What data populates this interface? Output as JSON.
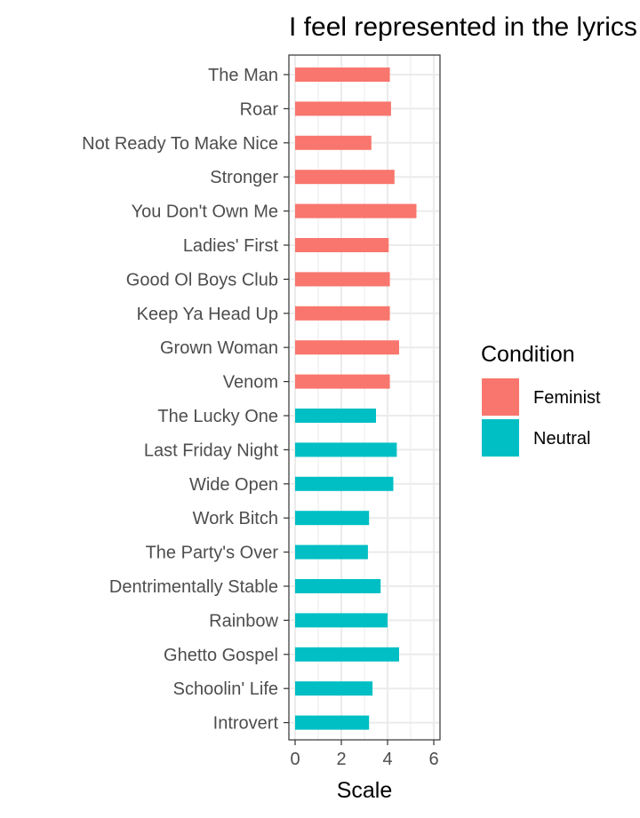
{
  "chart_data": {
    "type": "bar",
    "orientation": "horizontal",
    "title": "I feel represented in the lyrics",
    "xlabel": "Scale",
    "ylabel": "",
    "xlim": [
      0,
      6
    ],
    "x_ticks": [
      0,
      2,
      4,
      6
    ],
    "grid": true,
    "legend": {
      "title": "Condition",
      "position": "right",
      "entries": [
        {
          "name": "Feminist",
          "color": "#F8766D"
        },
        {
          "name": "Neutral",
          "color": "#00BFC4"
        }
      ]
    },
    "categories": [
      "The Man",
      "Roar",
      "Not Ready To Make Nice",
      "Stronger",
      "You Don't Own Me",
      "Ladies' First",
      "Good Ol Boys Club",
      "Keep Ya Head Up",
      "Grown Woman",
      "Venom",
      "The Lucky One",
      "Last Friday Night",
      "Wide Open",
      "Work Bitch",
      "The Party's Over",
      "Dentrimentally Stable",
      "Rainbow",
      "Ghetto Gospel",
      "Schoolin' Life",
      "Introvert"
    ],
    "values": [
      4.1,
      4.15,
      3.3,
      4.3,
      5.25,
      4.05,
      4.1,
      4.1,
      4.5,
      4.1,
      3.5,
      4.4,
      4.25,
      3.2,
      3.15,
      3.7,
      4.0,
      4.5,
      3.35,
      3.2
    ],
    "condition": [
      "Feminist",
      "Feminist",
      "Feminist",
      "Feminist",
      "Feminist",
      "Feminist",
      "Feminist",
      "Feminist",
      "Feminist",
      "Feminist",
      "Neutral",
      "Neutral",
      "Neutral",
      "Neutral",
      "Neutral",
      "Neutral",
      "Neutral",
      "Neutral",
      "Neutral",
      "Neutral"
    ]
  }
}
